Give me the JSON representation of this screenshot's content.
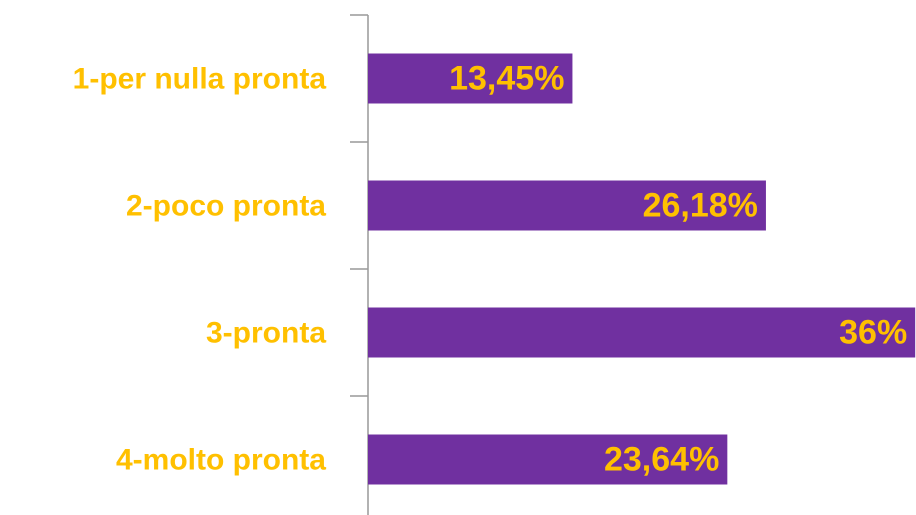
{
  "chart_data": {
    "type": "barh",
    "categories": [
      "1-per nulla pronta",
      "2-poco pronta",
      "3-pronta",
      "4-molto pronta"
    ],
    "values": [
      13.45,
      26.18,
      36,
      23.64
    ],
    "value_labels": [
      "13,45%",
      "26,18%",
      "36%",
      "23,64%"
    ],
    "color": "#7030a0",
    "label_color": "#ffc000"
  }
}
